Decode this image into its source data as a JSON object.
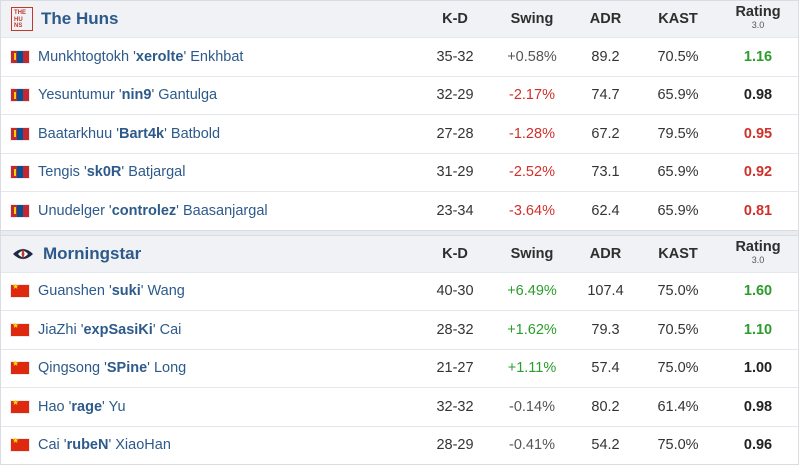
{
  "headers": {
    "kd": "K-D",
    "swing": "Swing",
    "adr": "ADR",
    "kast": "KAST",
    "rating": "Rating",
    "rating_sub": "3.0"
  },
  "teams": [
    {
      "name": "The Huns",
      "players": [
        {
          "first": "Munkhtogtokh '",
          "nick": "xerolte",
          "last": "' Enkhbat",
          "kd": "35-32",
          "swing": "+0.58%",
          "swing_class": "neu",
          "adr": "89.2",
          "kast": "70.5%",
          "rating": "1.16",
          "rating_class": "rt-green"
        },
        {
          "first": "Yesuntumur '",
          "nick": "nin9",
          "last": "' Gantulga",
          "kd": "32-29",
          "swing": "-2.17%",
          "swing_class": "neg",
          "adr": "74.7",
          "kast": "65.9%",
          "rating": "0.98",
          "rating_class": "rt-black"
        },
        {
          "first": "Baatarkhuu '",
          "nick": "Bart4k",
          "last": "' Batbold",
          "kd": "27-28",
          "swing": "-1.28%",
          "swing_class": "neg",
          "adr": "67.2",
          "kast": "79.5%",
          "rating": "0.95",
          "rating_class": "rt-red"
        },
        {
          "first": "Tengis '",
          "nick": "sk0R",
          "last": "' Batjargal",
          "kd": "31-29",
          "swing": "-2.52%",
          "swing_class": "neg",
          "adr": "73.1",
          "kast": "65.9%",
          "rating": "0.92",
          "rating_class": "rt-red"
        },
        {
          "first": "Unudelger '",
          "nick": "controlez",
          "last": "' Baasanjargal",
          "kd": "23-34",
          "swing": "-3.64%",
          "swing_class": "neg",
          "adr": "62.4",
          "kast": "65.9%",
          "rating": "0.81",
          "rating_class": "rt-red"
        }
      ]
    },
    {
      "name": "Morningstar",
      "players": [
        {
          "first": "Guanshen '",
          "nick": "suki",
          "last": "' Wang",
          "kd": "40-30",
          "swing": "+6.49%",
          "swing_class": "pos",
          "adr": "107.4",
          "kast": "75.0%",
          "rating": "1.60",
          "rating_class": "rt-green"
        },
        {
          "first": "JiaZhi '",
          "nick": "expSasiKi",
          "last": "' Cai",
          "kd": "28-32",
          "swing": "+1.62%",
          "swing_class": "pos",
          "adr": "79.3",
          "kast": "70.5%",
          "rating": "1.10",
          "rating_class": "rt-green"
        },
        {
          "first": "Qingsong '",
          "nick": "SPine",
          "last": "' Long",
          "kd": "21-27",
          "swing": "+1.11%",
          "swing_class": "pos",
          "adr": "57.4",
          "kast": "75.0%",
          "rating": "1.00",
          "rating_class": "rt-black"
        },
        {
          "first": "Hao '",
          "nick": "rage",
          "last": "' Yu",
          "kd": "32-32",
          "swing": "-0.14%",
          "swing_class": "neu",
          "adr": "80.2",
          "kast": "61.4%",
          "rating": "0.98",
          "rating_class": "rt-black"
        },
        {
          "first": "Cai '",
          "nick": "rubeN",
          "last": "' XiaoHan",
          "kd": "28-29",
          "swing": "-0.41%",
          "swing_class": "neu",
          "adr": "54.2",
          "kast": "75.0%",
          "rating": "0.96",
          "rating_class": "rt-black"
        }
      ]
    }
  ],
  "team_logos": [
    "huns-logo-icon",
    "morningstar-logo-icon"
  ],
  "flags": [
    "mongolia-flag-icon",
    "china-flag-icon"
  ]
}
